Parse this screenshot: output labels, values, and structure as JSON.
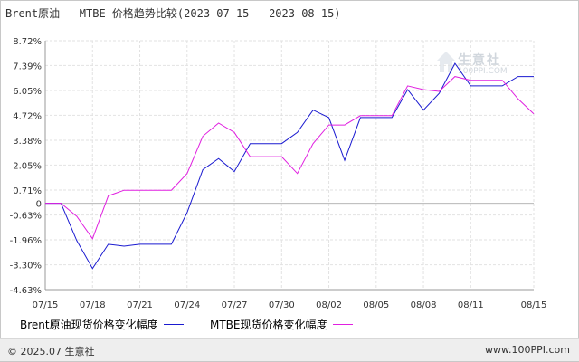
{
  "title": "Brent原油 - MTBE 价格趋势比较(2023-07-15 - 2023-08-15)",
  "watermark": {
    "brand": "生意社",
    "url": "100PPI.COM"
  },
  "footer": {
    "copyright": "© 2025.07 生意社",
    "site": "www.100PPI.com"
  },
  "chart_data": {
    "type": "line",
    "title": "Brent原油 - MTBE 价格趋势比较(2023-07-15 - 2023-08-15)",
    "xlabel": "",
    "ylabel": "",
    "x": [
      "07/15",
      "07/16",
      "07/17",
      "07/18",
      "07/19",
      "07/20",
      "07/21",
      "07/22",
      "07/23",
      "07/24",
      "07/25",
      "07/26",
      "07/27",
      "07/28",
      "07/29",
      "07/30",
      "07/31",
      "08/01",
      "08/02",
      "08/03",
      "08/04",
      "08/05",
      "08/06",
      "08/07",
      "08/08",
      "08/09",
      "08/10",
      "08/11",
      "08/12",
      "08/13",
      "08/14",
      "08/15"
    ],
    "x_tick_labels": [
      "07/15",
      "07/18",
      "07/21",
      "07/24",
      "07/27",
      "07/30",
      "08/02",
      "08/05",
      "08/08",
      "08/11",
      "08/15"
    ],
    "y_tick_labels": [
      "8.72%",
      "7.39%",
      "6.05%",
      "4.72%",
      "3.38%",
      "2.05%",
      "0.71%",
      "0",
      "-0.63%",
      "-1.96%",
      "-3.30%",
      "-4.63%"
    ],
    "y_ticks": [
      8.72,
      7.39,
      6.05,
      4.72,
      3.38,
      2.05,
      0.71,
      0,
      -0.63,
      -1.96,
      -3.3,
      -4.63
    ],
    "ylim": [
      -4.63,
      8.72
    ],
    "grid": true,
    "legend_position": "bottom",
    "series": [
      {
        "name": "Brent原油现货价格变化幅度",
        "color": "#1a1ad0",
        "values": [
          0,
          0,
          -2.0,
          -3.5,
          -2.2,
          -2.3,
          -2.2,
          -2.2,
          -2.2,
          -0.5,
          1.8,
          2.4,
          1.7,
          3.2,
          3.2,
          3.2,
          3.8,
          5.0,
          4.6,
          2.3,
          4.6,
          4.6,
          4.6,
          6.1,
          5.0,
          5.9,
          7.5,
          6.3,
          6.3,
          6.3,
          6.8,
          6.8
        ]
      },
      {
        "name": "MTBE现货价格变化幅度",
        "color": "#e020e0",
        "values": [
          0,
          0,
          -0.7,
          -1.9,
          0.4,
          0.7,
          0.7,
          0.7,
          0.7,
          1.6,
          3.6,
          4.3,
          3.8,
          2.5,
          2.5,
          2.5,
          1.6,
          3.2,
          4.2,
          4.2,
          4.7,
          4.7,
          4.7,
          6.3,
          6.1,
          6.0,
          6.8,
          6.6,
          6.6,
          6.6,
          5.6,
          4.8
        ]
      }
    ]
  }
}
